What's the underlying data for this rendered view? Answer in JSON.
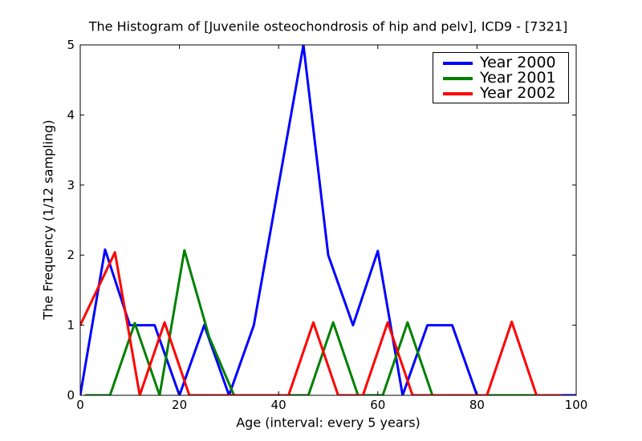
{
  "title": "The Histogram of [Juvenile osteochondrosis of hip and pelv], ICD9 - [7321]",
  "chart_data": {
    "type": "line",
    "title": "The Histogram of [Juvenile osteochondrosis of hip and pelv], ICD9 - [7321]",
    "xlabel": "Age (interval: every 5 years)",
    "ylabel": "The Frequency (1/12 sampling)",
    "xlim": [
      0,
      100
    ],
    "ylim": [
      0,
      5
    ],
    "x_ticks": [
      0,
      20,
      40,
      60,
      80,
      100
    ],
    "y_ticks": [
      0,
      1,
      2,
      3,
      4,
      5
    ],
    "grid": false,
    "legend_position": "upper right",
    "line_width": 3,
    "series": [
      {
        "name": "Year 2000",
        "color": "#0000ff",
        "points": [
          [
            0,
            0
          ],
          [
            5,
            2.08
          ],
          [
            10,
            1
          ],
          [
            15,
            1
          ],
          [
            20,
            0
          ],
          [
            25,
            1
          ],
          [
            30,
            0
          ],
          [
            35,
            1
          ],
          [
            40,
            3
          ],
          [
            45,
            5
          ],
          [
            50,
            2
          ],
          [
            55,
            1
          ],
          [
            60,
            2.06
          ],
          [
            65,
            0
          ],
          [
            70,
            1
          ],
          [
            75,
            1
          ],
          [
            80,
            0
          ],
          [
            85,
            0
          ],
          [
            90,
            0
          ],
          [
            95,
            0
          ],
          [
            100,
            0
          ]
        ]
      },
      {
        "name": "Year 2001",
        "color": "#008000",
        "points": [
          [
            1,
            0
          ],
          [
            6,
            0
          ],
          [
            11,
            1.03
          ],
          [
            16,
            0
          ],
          [
            21,
            2.07
          ],
          [
            26,
            0.83
          ],
          [
            31,
            0
          ],
          [
            36,
            0
          ],
          [
            41,
            0
          ],
          [
            46,
            0
          ],
          [
            51,
            1.04
          ],
          [
            56,
            0
          ],
          [
            61,
            0
          ],
          [
            66,
            1.04
          ],
          [
            71,
            0
          ],
          [
            76,
            0
          ],
          [
            81,
            0
          ],
          [
            86,
            0
          ],
          [
            91,
            0
          ],
          [
            96,
            0
          ]
        ]
      },
      {
        "name": "Year 2002",
        "color": "#ff0000",
        "points": [
          [
            0,
            1
          ],
          [
            7,
            2.04
          ],
          [
            12,
            0
          ],
          [
            17,
            1.04
          ],
          [
            22,
            0
          ],
          [
            27,
            0
          ],
          [
            32,
            0
          ],
          [
            37,
            0
          ],
          [
            42,
            0
          ],
          [
            47,
            1.04
          ],
          [
            52,
            0
          ],
          [
            57,
            0
          ],
          [
            62,
            1.04
          ],
          [
            67,
            0
          ],
          [
            72,
            0
          ],
          [
            77,
            0
          ],
          [
            82,
            0
          ],
          [
            87,
            1.05
          ],
          [
            92,
            0
          ],
          [
            97,
            0
          ]
        ]
      }
    ]
  }
}
